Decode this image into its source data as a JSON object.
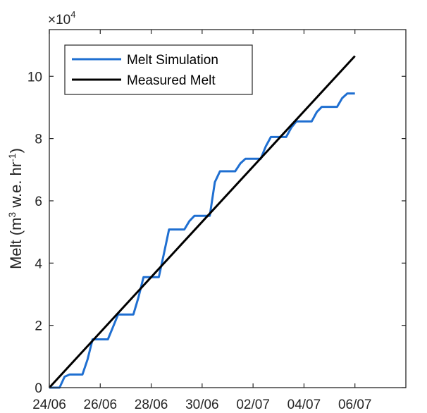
{
  "chart_data": {
    "type": "line",
    "ylabel": "Melt (m3 w.e. hr-1)",
    "ylabel_parts": {
      "main": "Melt (m",
      "sup1": "3",
      "mid": " w.e. hr",
      "sup2": "-1",
      "end": ")"
    },
    "y_exponent_label": {
      "base": "×10",
      "exp": "4"
    },
    "xlim": [
      0,
      14
    ],
    "ylim": [
      0,
      11.5
    ],
    "x_ticks": [
      {
        "pos": 0,
        "label": "24/06"
      },
      {
        "pos": 2,
        "label": "26/06"
      },
      {
        "pos": 4,
        "label": "28/06"
      },
      {
        "pos": 6,
        "label": "30/06"
      },
      {
        "pos": 8,
        "label": "02/07"
      },
      {
        "pos": 10,
        "label": "04/07"
      },
      {
        "pos": 12,
        "label": "06/07"
      }
    ],
    "y_ticks": [
      {
        "pos": 0,
        "label": "0"
      },
      {
        "pos": 2,
        "label": "2"
      },
      {
        "pos": 4,
        "label": "4"
      },
      {
        "pos": 6,
        "label": "6"
      },
      {
        "pos": 8,
        "label": "8"
      },
      {
        "pos": 10,
        "label": "10"
      }
    ],
    "legend_position": "top-left",
    "grid": false,
    "series": [
      {
        "name": "Melt Simulation",
        "color": "#1f6fd1",
        "x": [
          0,
          0.4,
          0.6,
          0.8,
          1.0,
          1.3,
          1.5,
          1.7,
          2.0,
          2.3,
          2.5,
          2.7,
          3.0,
          3.3,
          3.5,
          3.7,
          4.0,
          4.3,
          4.5,
          4.7,
          5.0,
          5.3,
          5.5,
          5.7,
          6.0,
          6.3,
          6.5,
          6.7,
          7.0,
          7.3,
          7.5,
          7.7,
          8.0,
          8.3,
          8.5,
          8.7,
          9.0,
          9.3,
          9.5,
          9.7,
          10.0,
          10.3,
          10.5,
          10.7,
          11.0,
          11.3,
          11.5,
          11.7,
          12.0
        ],
        "y": [
          0,
          0,
          0.35,
          0.42,
          0.42,
          0.42,
          0.9,
          1.55,
          1.55,
          1.55,
          1.95,
          2.35,
          2.35,
          2.35,
          2.9,
          3.55,
          3.55,
          3.55,
          4.3,
          5.08,
          5.08,
          5.08,
          5.35,
          5.52,
          5.52,
          5.52,
          6.6,
          6.95,
          6.95,
          6.95,
          7.2,
          7.35,
          7.35,
          7.35,
          7.75,
          8.05,
          8.05,
          8.05,
          8.35,
          8.55,
          8.55,
          8.55,
          8.85,
          9.02,
          9.02,
          9.02,
          9.3,
          9.45,
          9.45
        ]
      },
      {
        "name": "Measured Melt",
        "color": "#000000",
        "x": [
          0,
          12
        ],
        "y": [
          0,
          10.65
        ]
      }
    ]
  }
}
